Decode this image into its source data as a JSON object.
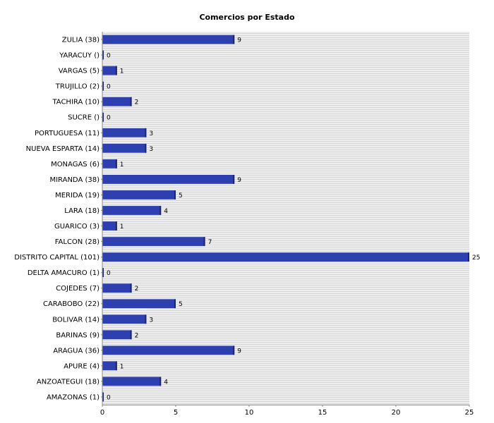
{
  "chart_data": {
    "type": "bar",
    "orientation": "horizontal",
    "title": "Comercios por Estado",
    "xlabel": "",
    "ylabel": "",
    "xlim": [
      0,
      25
    ],
    "x_ticks": [
      0,
      5,
      10,
      15,
      20,
      25
    ],
    "grid": true,
    "legend": "none",
    "bar_color": "#2e40b0",
    "bar_edge_color": "#1b2670",
    "plot_background": "#eeeeee",
    "categories": [
      "ZULIA (38)",
      "YARACUY ()",
      "VARGAS (5)",
      "TRUJILLO (2)",
      "TACHIRA (10)",
      "SUCRE ()",
      "PORTUGUESA (11)",
      "NUEVA ESPARTA (14)",
      "MONAGAS (6)",
      "MIRANDA (38)",
      "MERIDA (19)",
      "LARA (18)",
      "GUARICO (3)",
      "FALCON (28)",
      "DISTRITO CAPITAL (101)",
      "DELTA AMACURO (1)",
      "COJEDES (7)",
      "CARABOBO (22)",
      "BOLIVAR (14)",
      "BARINAS (9)",
      "ARAGUA (36)",
      "APURE (4)",
      "ANZOATEGUI (18)",
      "AMAZONAS (1)"
    ],
    "values": [
      9,
      0,
      1,
      0,
      2,
      0,
      3,
      3,
      1,
      9,
      5,
      4,
      1,
      7,
      25,
      0,
      2,
      5,
      3,
      2,
      9,
      1,
      4,
      0
    ]
  }
}
